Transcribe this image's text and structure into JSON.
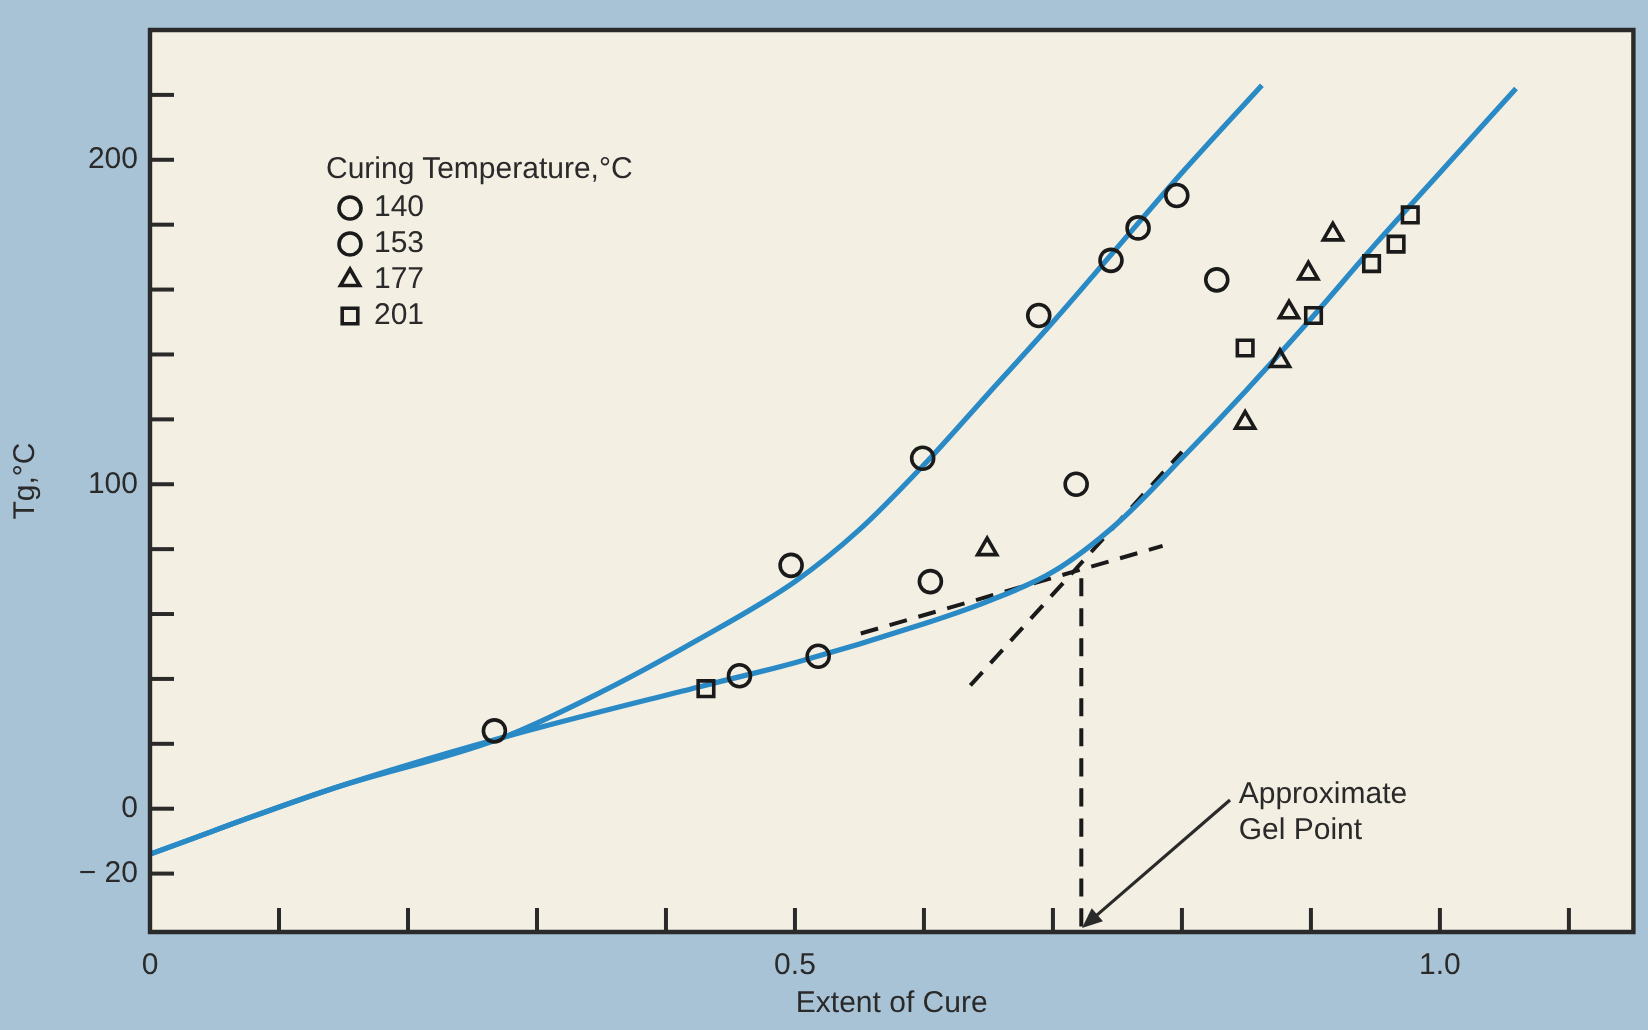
{
  "chart_data": {
    "type": "scatter",
    "xlabel": "Extent of Cure",
    "ylabel": "Tg,°C",
    "legend_title": "Curing Temperature,°C",
    "xlim": [
      0,
      1.15
    ],
    "ylim": [
      -38,
      240
    ],
    "xticks": [
      0,
      {
        "value": 0.1,
        "label": null
      },
      {
        "value": 0.2,
        "label": null
      },
      {
        "value": 0.3,
        "label": null
      },
      {
        "value": 0.4,
        "label": null
      },
      0.5,
      {
        "value": 0.6,
        "label": null
      },
      {
        "value": 0.7,
        "label": null
      },
      {
        "value": 0.8,
        "label": null
      },
      {
        "value": 0.9,
        "label": null
      },
      {
        "value": 1.0,
        "label": "1.0"
      },
      {
        "value": 1.1,
        "label": null
      }
    ],
    "yticks": [
      {
        "value": -20,
        "label": "− 20"
      },
      0,
      {
        "value": 20,
        "label": null
      },
      {
        "value": 40,
        "label": null
      },
      {
        "value": 60,
        "label": null
      },
      {
        "value": 80,
        "label": null
      },
      100,
      {
        "value": 120,
        "label": null
      },
      {
        "value": 140,
        "label": null
      },
      {
        "value": 160,
        "label": null
      },
      {
        "value": 180,
        "label": null
      },
      200,
      {
        "value": 220,
        "label": null
      }
    ],
    "grid": false,
    "legend": "top left",
    "series": [
      {
        "name": "140",
        "marker": "circle",
        "color": "#1a1a1a",
        "x": [
          0.457,
          0.518,
          0.605,
          0.718,
          0.827
        ],
        "values": [
          41,
          47,
          70,
          100,
          163
        ]
      },
      {
        "name": "153",
        "marker": "circle",
        "color": "#1a1a1a",
        "x": [
          0.267,
          0.497,
          0.599,
          0.689,
          0.745,
          0.766,
          0.796
        ],
        "values": [
          24,
          75,
          108,
          152,
          169,
          179,
          189
        ]
      },
      {
        "name": "177",
        "marker": "triangle",
        "color": "#1a1a1a",
        "x": [
          0.649,
          0.849,
          0.876,
          0.883,
          0.898,
          0.917
        ],
        "values": [
          80,
          119,
          138,
          153,
          165,
          177
        ]
      },
      {
        "name": "201",
        "marker": "square",
        "color": "#1a1a1a",
        "x": [
          0.431,
          0.849,
          0.902,
          0.947,
          0.966,
          0.977
        ],
        "values": [
          37,
          142,
          152,
          168,
          174,
          183
        ]
      },
      {
        "type": "line",
        "color": "#2a8ac6",
        "marker": "none",
        "line_style": "solid",
        "x": [
          0,
          0.14,
          0.274,
          0.43,
          0.5,
          0.6,
          0.65,
          0.7,
          0.75,
          0.8,
          0.85,
          0.9,
          0.95,
          1.0,
          1.059
        ],
        "values": [
          -14,
          6,
          22,
          38,
          45,
          57,
          64,
          73,
          88,
          108,
          129,
          151,
          174,
          196,
          222
        ]
      },
      {
        "type": "line",
        "color": "#2a8ac6",
        "marker": "none",
        "line_style": "solid",
        "x": [
          0,
          0.14,
          0.274,
          0.35,
          0.42,
          0.5,
          0.55,
          0.6,
          0.65,
          0.7,
          0.75,
          0.8,
          0.862
        ],
        "values": [
          -14,
          6,
          22,
          36,
          51,
          70,
          86,
          106,
          128,
          150,
          173,
          196,
          223
        ]
      },
      {
        "type": "line",
        "color": "#1a1a1a",
        "marker": "none",
        "line_style": "dashed",
        "x": [
          0.551,
          0.785
        ],
        "values": [
          54,
          81
        ]
      },
      {
        "type": "line",
        "color": "#1a1a1a",
        "marker": "none",
        "line_style": "dashed",
        "x": [
          0.636,
          0.8
        ],
        "values": [
          38,
          110
        ]
      },
      {
        "type": "line",
        "color": "#1a1a1a",
        "marker": "none",
        "line_style": "dashed",
        "x": [
          0.722,
          0.722
        ],
        "values": [
          71,
          -38
        ]
      }
    ],
    "annotations": [
      {
        "text": "Approximate\nGel Point",
        "x": 0.72,
        "y": -38
      }
    ]
  }
}
